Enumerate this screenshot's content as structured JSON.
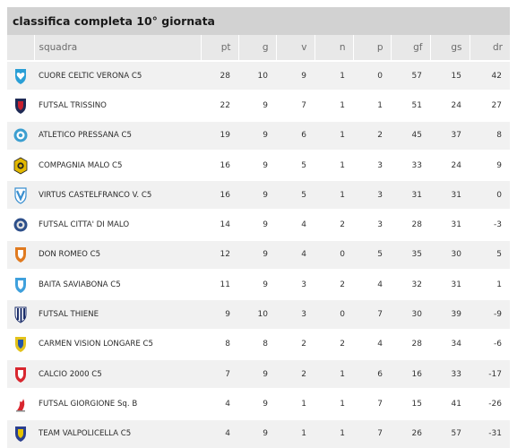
{
  "header": {
    "title": "classifica completa 10° giornata"
  },
  "columns": {
    "team": "squadra",
    "pt": "pt",
    "g": "g",
    "v": "v",
    "n": "n",
    "p": "p",
    "gf": "gf",
    "gs": "gs",
    "dr": "dr"
  },
  "rows": [
    {
      "team": "CUORE CELTIC VERONA C5",
      "pt": "28",
      "g": "10",
      "v": "9",
      "n": "1",
      "p": "0",
      "gf": "57",
      "gs": "15",
      "dr": "42",
      "logo_icon": "heart-crest-icon",
      "color": "#2a9fd6",
      "accent": "#ffffff"
    },
    {
      "team": "FUTSAL TRISSINO",
      "pt": "22",
      "g": "9",
      "v": "7",
      "n": "1",
      "p": "1",
      "gf": "51",
      "gs": "24",
      "dr": "27",
      "logo_icon": "shield-crest-icon",
      "color": "#1f2a55",
      "accent": "#c8202f"
    },
    {
      "team": "ATLETICO PRESSANA C5",
      "pt": "19",
      "g": "9",
      "v": "6",
      "n": "1",
      "p": "2",
      "gf": "45",
      "gs": "37",
      "dr": "8",
      "logo_icon": "round-crest-icon",
      "color": "#3c9fd0",
      "accent": "#ffffff"
    },
    {
      "team": "COMPAGNIA MALO C5",
      "pt": "16",
      "g": "9",
      "v": "5",
      "n": "1",
      "p": "3",
      "gf": "33",
      "gs": "24",
      "dr": "9",
      "logo_icon": "star-crest-icon",
      "color": "#e2b800",
      "accent": "#222222"
    },
    {
      "team": "VIRTUS CASTELFRANCO V. C5",
      "pt": "16",
      "g": "9",
      "v": "5",
      "n": "1",
      "p": "3",
      "gf": "31",
      "gs": "31",
      "dr": "0",
      "logo_icon": "v-crest-icon",
      "color": "#3a8fd0",
      "accent": "#ffffff"
    },
    {
      "team": "FUTSAL CITTA' DI MALO",
      "pt": "14",
      "g": "9",
      "v": "4",
      "n": "2",
      "p": "3",
      "gf": "28",
      "gs": "31",
      "dr": "-3",
      "logo_icon": "round-crest-icon",
      "color": "#2d4f8a",
      "accent": "#e0e0e0"
    },
    {
      "team": "DON ROMEO C5",
      "pt": "12",
      "g": "9",
      "v": "4",
      "n": "0",
      "p": "5",
      "gf": "35",
      "gs": "30",
      "dr": "5",
      "logo_icon": "shield-crest-icon",
      "color": "#e07a1f",
      "accent": "#ffffff"
    },
    {
      "team": "BAITA SAVIABONA C5",
      "pt": "11",
      "g": "9",
      "v": "3",
      "n": "2",
      "p": "4",
      "gf": "32",
      "gs": "31",
      "dr": "1",
      "logo_icon": "shield-crest-icon",
      "color": "#3fa0dc",
      "accent": "#ffffff"
    },
    {
      "team": "FUTSAL THIENE",
      "pt": "9",
      "g": "10",
      "v": "3",
      "n": "0",
      "p": "7",
      "gf": "30",
      "gs": "39",
      "dr": "-9",
      "logo_icon": "stripes-crest-icon",
      "color": "#1d2f6b",
      "accent": "#ffffff"
    },
    {
      "team": "CARMEN VISION LONGARE C5",
      "pt": "8",
      "g": "8",
      "v": "2",
      "n": "2",
      "p": "4",
      "gf": "28",
      "gs": "34",
      "dr": "-6",
      "logo_icon": "shield-crest-icon",
      "color": "#e3c21a",
      "accent": "#2255aa"
    },
    {
      "team": "CALCIO 2000 C5",
      "pt": "7",
      "g": "9",
      "v": "2",
      "n": "1",
      "p": "6",
      "gf": "16",
      "gs": "33",
      "dr": "-17",
      "logo_icon": "shield-crest-icon",
      "color": "#d8262e",
      "accent": "#ffffff"
    },
    {
      "team": "FUTSAL GIORGIONE Sq. B",
      "pt": "4",
      "g": "9",
      "v": "1",
      "n": "1",
      "p": "7",
      "gf": "15",
      "gs": "41",
      "dr": "-26",
      "logo_icon": "flame-crest-icon",
      "color": "#d8262e",
      "accent": "#888888"
    },
    {
      "team": "TEAM VALPOLICELLA C5",
      "pt": "4",
      "g": "9",
      "v": "1",
      "n": "1",
      "p": "7",
      "gf": "26",
      "gs": "57",
      "dr": "-31",
      "logo_icon": "shield-crest-icon",
      "color": "#2a3f8f",
      "accent": "#e6c300"
    }
  ]
}
